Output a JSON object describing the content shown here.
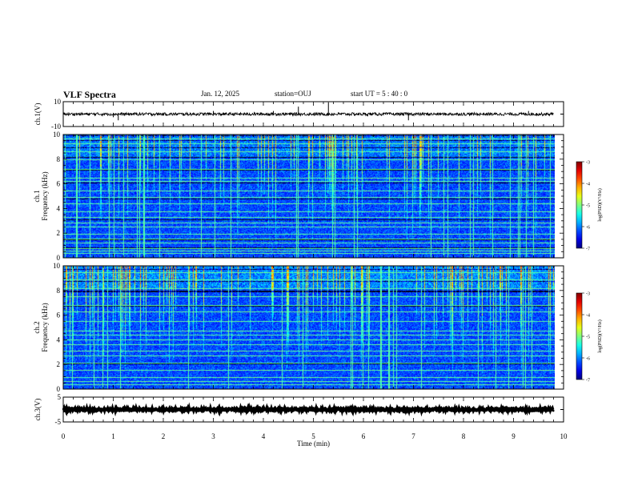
{
  "header": {
    "title": "VLF Spectra",
    "date": "Jan. 12, 2025",
    "station": "station=OUJ",
    "start": "start  UT =  5 : 40 : 0"
  },
  "chart_data": [
    {
      "type": "line",
      "name": "ch1-waveform",
      "ylabel": "ch.1(V)",
      "ylim": [
        -10,
        10
      ],
      "yticks": [
        "10",
        "-10"
      ],
      "xlim": [
        0,
        10
      ],
      "x_end": 9.8,
      "baseline": 0,
      "noise_amplitude": 1.2,
      "spikes": [
        {
          "x": 1.0,
          "y": -2.5
        },
        {
          "x": 1.1,
          "y": -5
        },
        {
          "x": 3.0,
          "y": 2.5
        },
        {
          "x": 4.2,
          "y": 2.5
        },
        {
          "x": 4.7,
          "y": 6
        },
        {
          "x": 5.3,
          "y": 9.5
        },
        {
          "x": 6.9,
          "y": -5
        },
        {
          "x": 9.3,
          "y": 2.5
        }
      ]
    },
    {
      "type": "heatmap",
      "name": "ch1-spectrogram",
      "ylabel": "ch.1\nFrequency (kHz)",
      "xlim": [
        0,
        10
      ],
      "ylim": [
        0,
        10
      ],
      "x_end": 9.8,
      "yticks": [
        0,
        2,
        4,
        6,
        8,
        10
      ],
      "colorbar": {
        "label": "log(PSD)(V²/Hz)",
        "range": [
          -7,
          -3
        ],
        "ticks": [
          -3,
          -4,
          -5,
          -6,
          -7
        ]
      },
      "transient_density": 0.75,
      "lines_kHz": [
        0.3,
        0.5,
        0.7,
        1.2,
        1.5,
        1.9,
        2.5,
        2.8,
        3.3,
        3.7,
        4.4,
        4.9,
        5.4,
        6.2,
        6.5,
        7.2,
        8.0,
        8.6,
        9.3,
        9.7
      ]
    },
    {
      "type": "heatmap",
      "name": "ch2-spectrogram",
      "ylabel": "ch.2\nFrequency (kHz)",
      "xlim": [
        0,
        10
      ],
      "ylim": [
        0,
        10
      ],
      "x_end": 9.8,
      "yticks": [
        0,
        2,
        4,
        6,
        8,
        10
      ],
      "colorbar": {
        "label": "log(PSD)(V²/Hz)",
        "range": [
          -7,
          -3
        ],
        "ticks": [
          -3,
          -4,
          -5,
          -6,
          -7
        ]
      },
      "transient_density": 1.0,
      "lines_kHz": [
        0.3,
        0.6,
        0.9,
        1.5,
        2.1,
        2.7,
        3.1,
        3.6,
        4.0,
        4.4,
        4.7,
        5.5,
        6.3,
        6.8,
        7.5,
        8.2,
        8.9,
        9.5
      ]
    },
    {
      "type": "line",
      "name": "ch3-waveform",
      "ylabel": "ch.3(V)",
      "ylim": [
        -5,
        5
      ],
      "yticks": [
        "5",
        "-5"
      ],
      "xlim": [
        0,
        10
      ],
      "x_end": 9.8,
      "baseline": 0,
      "noise_amplitude": 0.4
    }
  ],
  "xaxis": {
    "label": "Time (min)",
    "ticks": [
      0,
      1,
      2,
      3,
      4,
      5,
      6,
      7,
      8,
      9,
      10
    ]
  }
}
